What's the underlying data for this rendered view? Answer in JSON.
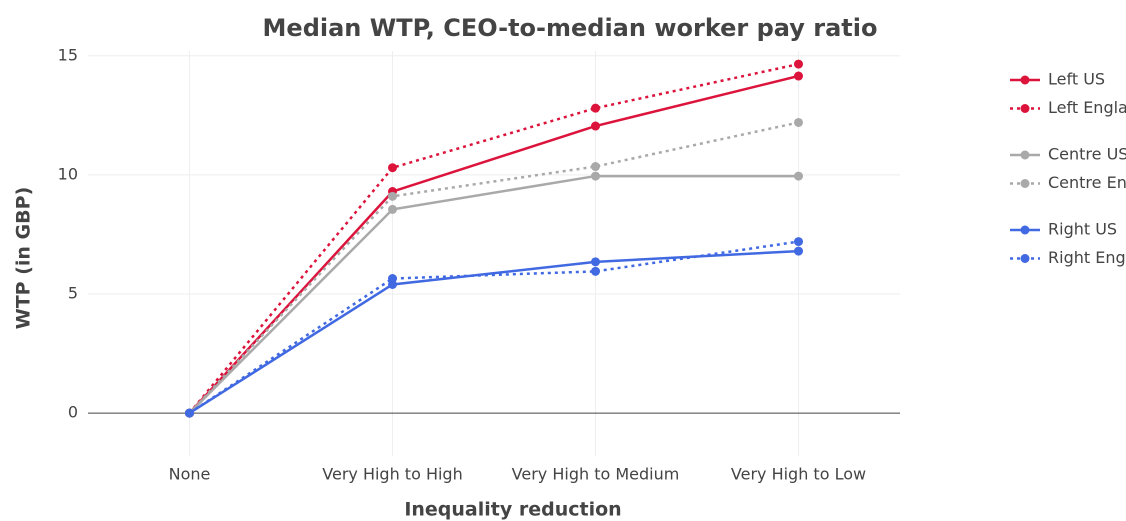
{
  "chart_data": {
    "type": "line",
    "title": "Median WTP, CEO-to-median worker pay ratio",
    "x_label": "Inequality reduction",
    "y_label": "WTP (in GBP)",
    "categories": [
      "None",
      "Very High to High",
      "Very High to Medium",
      "Very High to Low"
    ],
    "series": [
      {
        "name": "Left US",
        "color": "#dc143c",
        "dash": "solid",
        "values": [
          0,
          9.3,
          12.05,
          14.15
        ]
      },
      {
        "name": "Left England",
        "color": "#dc143c",
        "dash": "dot",
        "values": [
          0,
          10.3,
          12.8,
          14.65
        ]
      },
      {
        "name": "Centre US",
        "color": "#a9a9a9",
        "dash": "solid",
        "values": [
          0,
          8.55,
          9.95,
          9.95
        ]
      },
      {
        "name": "Centre England",
        "color": "#a9a9a9",
        "dash": "dot",
        "values": [
          0,
          9.1,
          10.35,
          12.2
        ]
      },
      {
        "name": "Right US",
        "color": "#4169e1",
        "dash": "solid",
        "values": [
          0,
          5.4,
          6.35,
          6.8
        ]
      },
      {
        "name": "Right England",
        "color": "#4169e1",
        "dash": "dot",
        "values": [
          0,
          5.65,
          5.95,
          7.2
        ]
      }
    ],
    "ylim": [
      -1.8,
      15.2
    ],
    "yticks": [
      0,
      5,
      10,
      15
    ],
    "grid": true,
    "legend": "right"
  }
}
